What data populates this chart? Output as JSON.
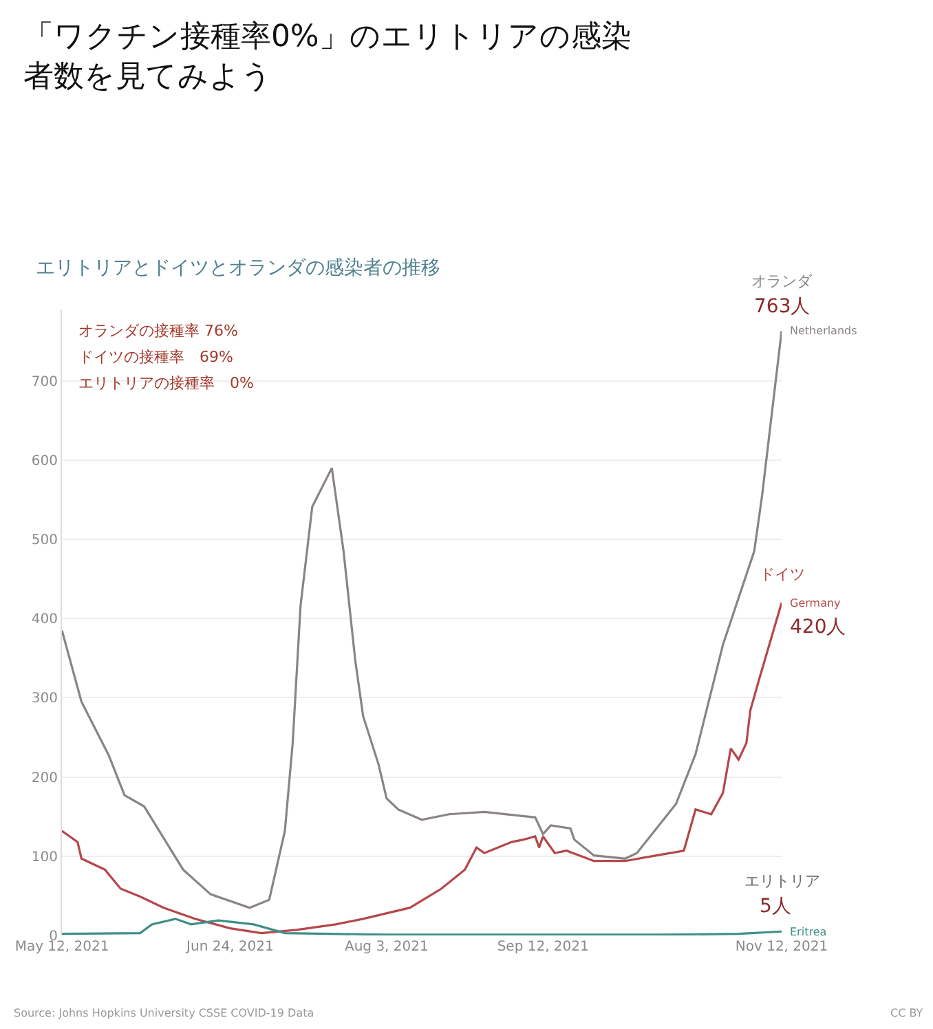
{
  "chart_data": {
    "type": "line",
    "title": "「ワクチン接種率0%」のエリトリアの感染者数を見てみよう",
    "subtitle": "エリトリアとドイツとオランダの感染者の推移",
    "series": [
      {
        "name": "Netherlands",
        "color": "#8a8387",
        "x": [
          "2021-05-12",
          "2021-05-17",
          "2021-05-24",
          "2021-05-28",
          "2021-06-02",
          "2021-06-12",
          "2021-06-19",
          "2021-06-29",
          "2021-07-04",
          "2021-07-08",
          "2021-07-10",
          "2021-07-12",
          "2021-07-15",
          "2021-07-20",
          "2021-07-23",
          "2021-07-26",
          "2021-07-28",
          "2021-08-01",
          "2021-08-03",
          "2021-08-06",
          "2021-08-12",
          "2021-08-19",
          "2021-08-28",
          "2021-09-10",
          "2021-09-12",
          "2021-09-14",
          "2021-09-19",
          "2021-09-20",
          "2021-09-25",
          "2021-10-03",
          "2021-10-06",
          "2021-10-16",
          "2021-10-21",
          "2021-10-28",
          "2021-11-05",
          "2021-11-07",
          "2021-11-12"
        ],
        "values": [
          385,
          295,
          227,
          177,
          163,
          83,
          52,
          35,
          45,
          132,
          243,
          416,
          541,
          590,
          485,
          347,
          277,
          215,
          173,
          159,
          146,
          153,
          156,
          149,
          128,
          139,
          135,
          121,
          101,
          97,
          104,
          166,
          229,
          367,
          485,
          555,
          763
        ]
      },
      {
        "name": "Germany",
        "color": "#b5474b",
        "x": [
          "2021-05-12",
          "2021-05-16",
          "2021-05-17",
          "2021-05-23",
          "2021-05-27",
          "2021-06-01",
          "2021-06-07",
          "2021-06-15",
          "2021-06-24",
          "2021-07-02",
          "2021-07-11",
          "2021-07-21",
          "2021-07-28",
          "2021-08-09",
          "2021-08-17",
          "2021-08-23",
          "2021-08-26",
          "2021-08-28",
          "2021-09-04",
          "2021-09-07",
          "2021-09-10",
          "2021-09-11",
          "2021-09-12",
          "2021-09-15",
          "2021-09-18",
          "2021-09-25",
          "2021-10-03",
          "2021-10-11",
          "2021-10-18",
          "2021-10-21",
          "2021-10-25",
          "2021-10-28",
          "2021-10-30",
          "2021-11-01",
          "2021-11-03",
          "2021-11-04",
          "2021-11-06",
          "2021-11-12"
        ],
        "values": [
          132,
          118,
          97,
          83,
          59,
          49,
          35,
          21,
          9,
          3,
          7,
          14,
          21,
          35,
          59,
          83,
          111,
          104,
          118,
          121,
          125,
          111,
          125,
          104,
          107,
          94,
          94,
          101,
          107,
          159,
          153,
          180,
          236,
          222,
          243,
          284,
          319,
          420
        ]
      },
      {
        "name": "Eritrea",
        "color": "#3f8f87",
        "x": [
          "2021-05-12",
          "2021-06-01",
          "2021-06-04",
          "2021-06-10",
          "2021-06-14",
          "2021-06-21",
          "2021-06-30",
          "2021-07-08",
          "2021-08-03",
          "2021-09-12",
          "2021-10-12",
          "2021-11-01",
          "2021-11-12"
        ],
        "values": [
          2,
          3,
          14,
          21,
          14,
          19,
          14,
          3,
          1,
          1,
          1,
          2,
          5
        ]
      }
    ],
    "xlim": [
      "2021-05-12",
      "2021-11-12"
    ],
    "xticks": [
      {
        "value": "2021-05-12",
        "label": "May 12, 2021"
      },
      {
        "value": "2021-06-24",
        "label": "Jun 24, 2021"
      },
      {
        "value": "2021-08-03",
        "label": "Aug 3, 2021"
      },
      {
        "value": "2021-09-12",
        "label": "Sep 12, 2021"
      },
      {
        "value": "2021-11-12",
        "label": "Nov 12, 2021"
      }
    ],
    "ylim": [
      0,
      790
    ],
    "yticks": [
      0,
      100,
      200,
      300,
      400,
      500,
      600,
      700
    ],
    "grid": "y",
    "legend": false,
    "annotations": [
      "オランダの接種率 76%",
      "ドイツの接種率　69%",
      "エリトリアの接種率　0%",
      "Source: Johns Hopkins University CSSE COVID-19 Data",
      "CC BY",
      "オランダ",
      "ドイツ",
      "エリトリア",
      {
        "text": "763人",
        "x": "2021-11-12",
        "y": 763
      },
      {
        "text": "420人",
        "x": "2021-11-12",
        "y": 420
      },
      {
        "text": "5人",
        "x": "2021-11-12",
        "y": 5
      }
    ]
  }
}
